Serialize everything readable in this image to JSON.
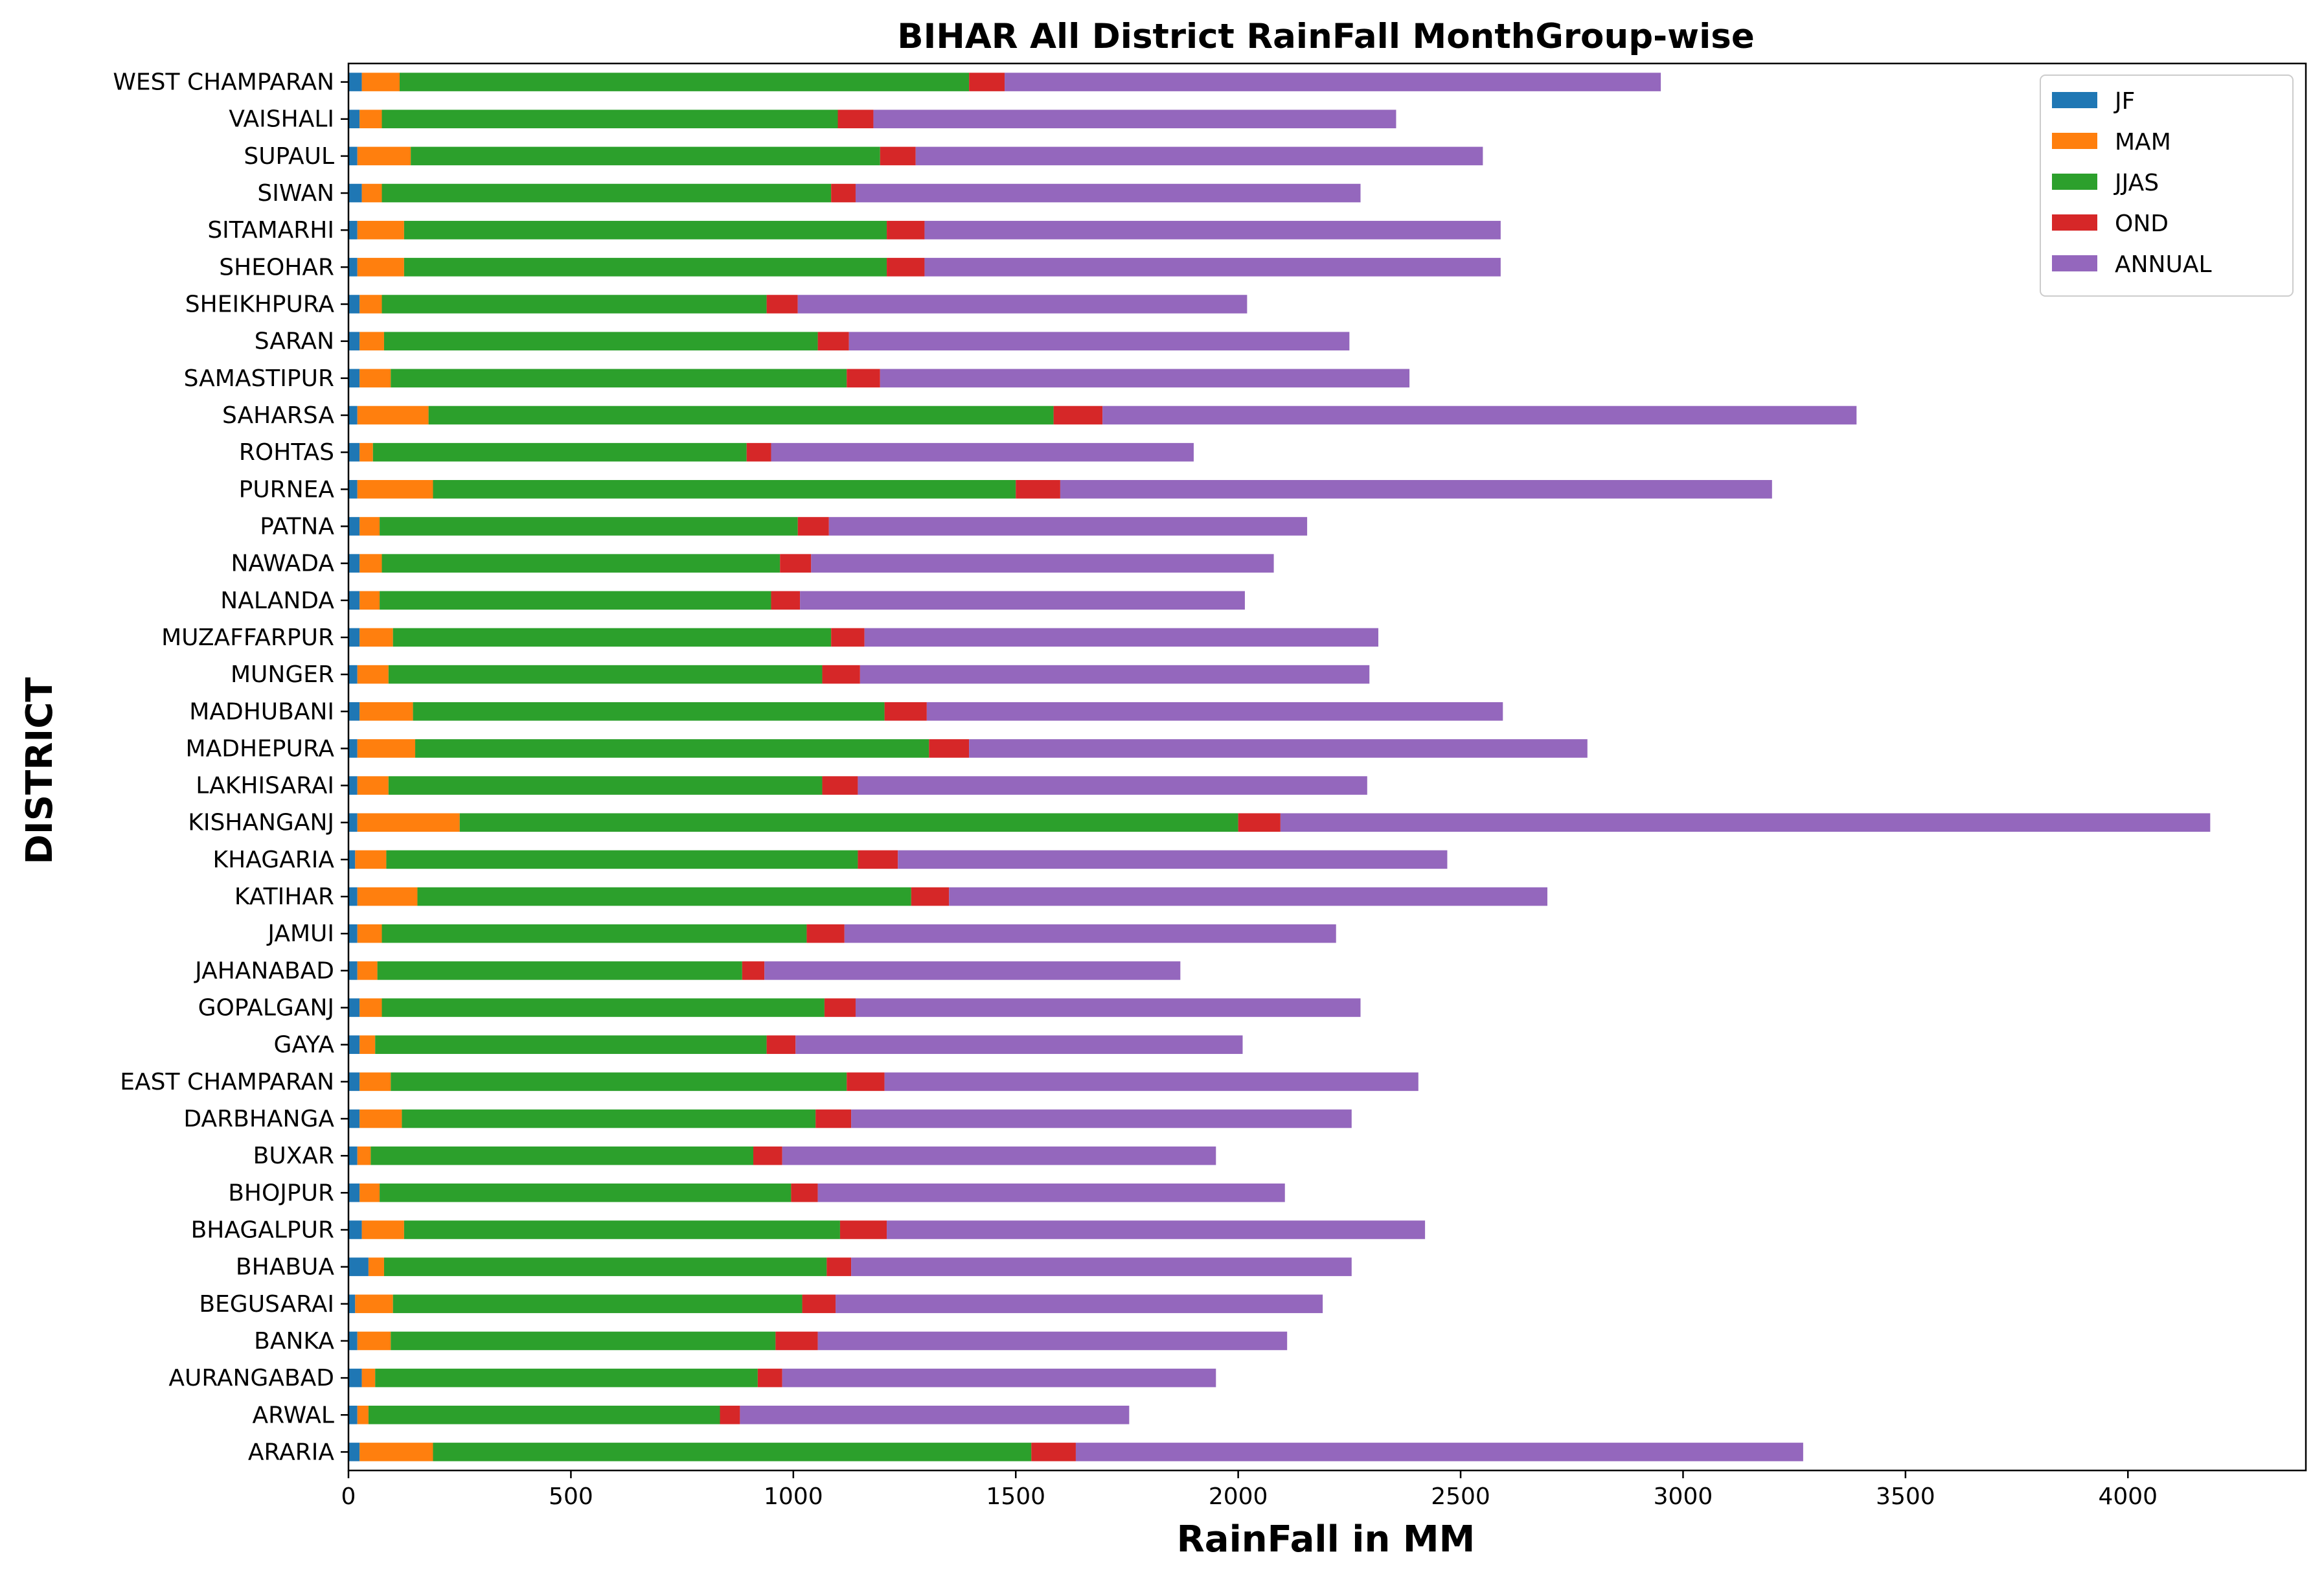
{
  "chart_data": {
    "type": "bar",
    "orientation": "horizontal",
    "stacked": true,
    "title": "BIHAR All District RainFall MonthGroup-wise",
    "xlabel": "RainFall in MM",
    "ylabel": "DISTRICT",
    "xlim": [
      0,
      4400
    ],
    "xticks": [
      0,
      500,
      1000,
      1500,
      2000,
      2500,
      3000,
      3500,
      4000
    ],
    "grid": false,
    "legend_position": "top-right",
    "categories": [
      "ARARIA",
      "ARWAL",
      "AURANGABAD",
      "BANKA",
      "BEGUSARAI",
      "BHABUA",
      "BHAGALPUR",
      "BHOJPUR",
      "BUXAR",
      "DARBHANGA",
      "EAST CHAMPARAN",
      "GAYA",
      "GOPALGANJ",
      "JAHANABAD",
      "JAMUI",
      "KATIHAR",
      "KHAGARIA",
      "KISHANGANJ",
      "LAKHISARAI",
      "MADHEPURA",
      "MADHUBANI",
      "MUNGER",
      "MUZAFFARPUR",
      "NALANDA",
      "NAWADA",
      "PATNA",
      "PURNEA",
      "ROHTAS",
      "SAHARSA",
      "SAMASTIPUR",
      "SARAN",
      "SHEIKHPURA",
      "SHEOHAR",
      "SITAMARHI",
      "SIWAN",
      "SUPAUL",
      "VAISHALI",
      "WEST CHAMPARAN"
    ],
    "series": [
      {
        "name": "JF",
        "color": "#1f77b4",
        "values": [
          25,
          20,
          30,
          20,
          15,
          45,
          30,
          25,
          20,
          25,
          25,
          25,
          25,
          20,
          20,
          20,
          15,
          20,
          20,
          20,
          25,
          20,
          25,
          25,
          25,
          25,
          20,
          25,
          20,
          25,
          25,
          25,
          20,
          20,
          30,
          20,
          25,
          30
        ]
      },
      {
        "name": "MAM",
        "color": "#ff7f0e",
        "values": [
          165,
          25,
          30,
          75,
          85,
          35,
          95,
          45,
          30,
          95,
          70,
          35,
          50,
          45,
          55,
          135,
          70,
          230,
          70,
          130,
          120,
          70,
          75,
          45,
          50,
          45,
          170,
          30,
          160,
          70,
          55,
          50,
          105,
          105,
          45,
          120,
          50,
          85
        ]
      },
      {
        "name": "JJAS",
        "color": "#2ca02c",
        "values": [
          1345,
          790,
          860,
          865,
          920,
          995,
          980,
          925,
          860,
          930,
          1025,
          880,
          995,
          820,
          955,
          1110,
          1060,
          1750,
          975,
          1155,
          1060,
          975,
          985,
          880,
          895,
          940,
          1310,
          840,
          1405,
          1025,
          975,
          865,
          1085,
          1085,
          1010,
          1055,
          1025,
          1280
        ]
      },
      {
        "name": "OND",
        "color": "#d62728",
        "values": [
          100,
          45,
          55,
          95,
          75,
          55,
          105,
          60,
          65,
          80,
          85,
          65,
          70,
          50,
          85,
          85,
          90,
          95,
          80,
          90,
          95,
          85,
          75,
          65,
          70,
          70,
          100,
          55,
          110,
          75,
          70,
          70,
          85,
          85,
          55,
          80,
          80,
          80
        ]
      },
      {
        "name": "ANNUAL",
        "color": "#9467bd",
        "values": [
          1635,
          875,
          975,
          1055,
          1095,
          1125,
          1210,
          1050,
          975,
          1125,
          1200,
          1005,
          1135,
          935,
          1105,
          1345,
          1235,
          2090,
          1145,
          1390,
          1295,
          1145,
          1155,
          1000,
          1040,
          1075,
          1600,
          950,
          1695,
          1190,
          1125,
          1010,
          1295,
          1295,
          1135,
          1275,
          1175,
          1475
        ]
      }
    ]
  }
}
